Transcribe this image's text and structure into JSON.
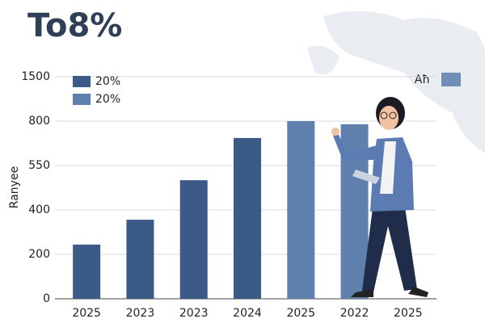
{
  "chart_data": {
    "type": "bar",
    "title": "To8%",
    "y_label": "Ranyee",
    "annotation": "Aħ",
    "categories": [
      "2025",
      "2023",
      "2023",
      "2024",
      "2025",
      "2022",
      "2025"
    ],
    "series": [
      {
        "name": "20%",
        "color": "#3b5a86",
        "values": [
          1.22,
          1.78,
          2.67,
          3.62,
          null,
          null,
          null
        ]
      },
      {
        "name": "20%",
        "color": "#5f80ad",
        "values": [
          null,
          null,
          null,
          null,
          4.0,
          3.93,
          null
        ]
      }
    ],
    "ylim": [
      0,
      5
    ],
    "yticks": [
      {
        "value": 0,
        "label": "0"
      },
      {
        "value": 1,
        "label": "200"
      },
      {
        "value": 2,
        "label": "400"
      },
      {
        "value": 3,
        "label": "550"
      },
      {
        "value": 4,
        "label": "800"
      },
      {
        "value": 5,
        "label": "1500"
      }
    ],
    "grid": true
  }
}
